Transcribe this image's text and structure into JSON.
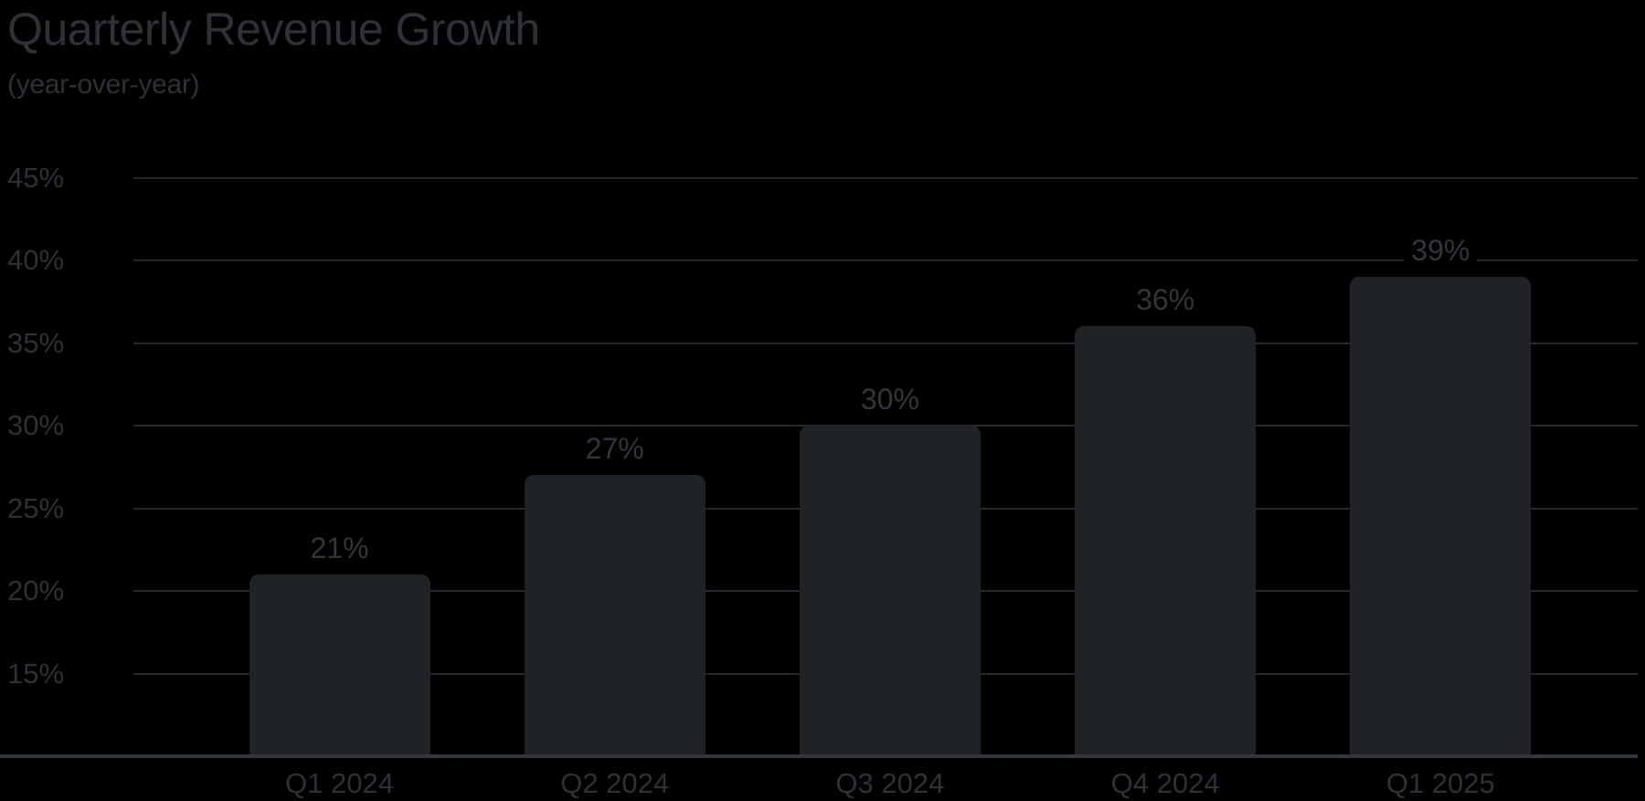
{
  "chart_data": {
    "type": "bar",
    "title": "Quarterly Revenue Growth",
    "subtitle": "(year-over-year)",
    "categories": [
      "Q1 2024",
      "Q2 2024",
      "Q3 2024",
      "Q4 2024",
      "Q1 2025"
    ],
    "values": [
      21,
      27,
      30,
      36,
      39
    ],
    "value_labels": [
      "21%",
      "27%",
      "30%",
      "36%",
      "39%"
    ],
    "yticks": [
      45,
      40,
      35,
      30,
      25,
      20,
      15
    ],
    "ytick_labels": [
      "45%",
      "40%",
      "35%",
      "30%",
      "25%",
      "20%",
      "15%"
    ],
    "ylim": [
      10,
      47
    ],
    "xlabel": "",
    "ylabel": "",
    "grid": "horizontal",
    "legend": "none",
    "colors": {
      "background": "#000000",
      "bar_fill": "#1f2227",
      "gridline": "#25282d",
      "axis_line": "#33373d",
      "title_text": "#2d3138",
      "subtitle_text": "#2c3037",
      "tick_text": "#2c3037",
      "value_text": "#31363d",
      "category_text": "#2d3138"
    }
  }
}
